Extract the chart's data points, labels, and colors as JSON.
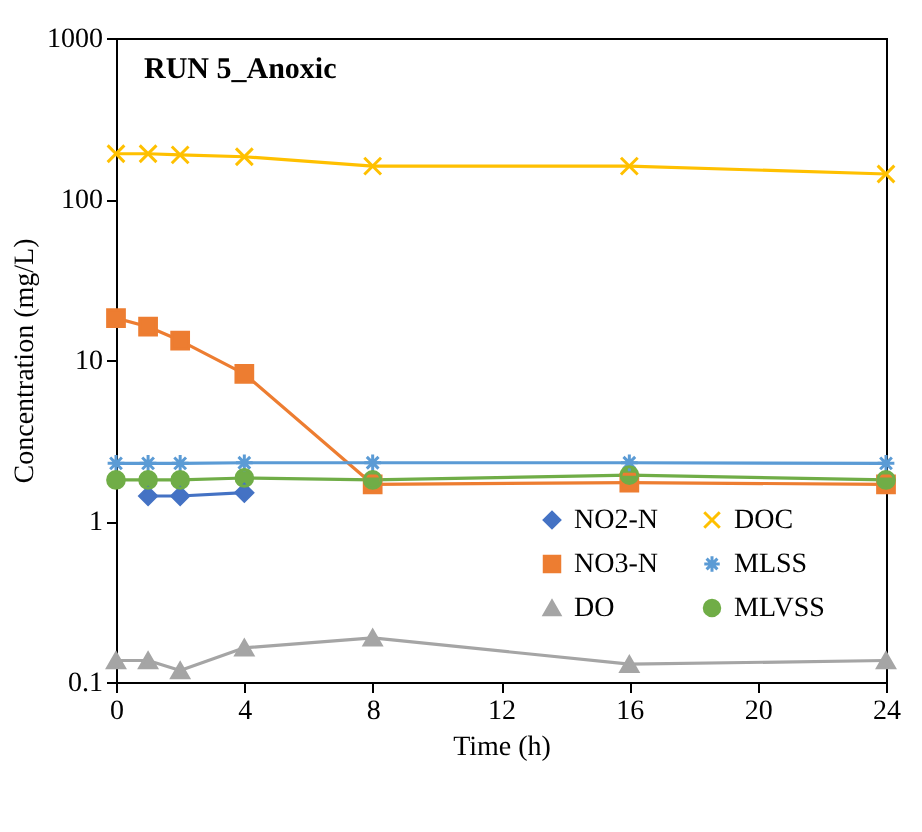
{
  "chart_data": {
    "type": "line",
    "title": "RUN 5_Anoxic",
    "xlabel": "Time (h)",
    "ylabel": "Concentration (mg/L)",
    "x": [
      0,
      1,
      2,
      4,
      8,
      16,
      24
    ],
    "series": [
      {
        "name": "NO2-N",
        "color": "#4472c4",
        "marker": "diamond",
        "values": [
          null,
          1.43,
          1.43,
          1.5,
          null,
          null,
          null
        ]
      },
      {
        "name": "NO3-N",
        "color": "#ed7d31",
        "marker": "square",
        "values": [
          18.2,
          16.1,
          13.2,
          8.2,
          1.69,
          1.73,
          1.69
        ]
      },
      {
        "name": "DO",
        "color": "#a5a5a5",
        "marker": "triangle",
        "values": [
          0.136,
          0.136,
          0.118,
          0.163,
          0.188,
          0.129,
          0.136
        ]
      },
      {
        "name": "DOC",
        "color": "#ffc000",
        "marker": "cross",
        "values": [
          191,
          191,
          188,
          183,
          160,
          160,
          143
        ]
      },
      {
        "name": "MLSS",
        "color": "#5b9bd5",
        "marker": "cross",
        "values": [
          2.28,
          2.28,
          2.28,
          2.3,
          2.3,
          2.3,
          2.28
        ]
      },
      {
        "name": "MLVSS",
        "color": "#70ad47",
        "marker": "circle",
        "values": [
          1.8,
          1.8,
          1.8,
          1.85,
          1.8,
          1.93,
          1.8
        ]
      }
    ],
    "xlim": [
      0,
      24
    ],
    "xticks": [
      0,
      4,
      8,
      12,
      16,
      20,
      24
    ],
    "ylim": [
      0.1,
      1000
    ],
    "yticks": [
      0.1,
      1,
      10,
      100,
      1000
    ],
    "log": true,
    "grid": false,
    "legend": "bottom right"
  }
}
